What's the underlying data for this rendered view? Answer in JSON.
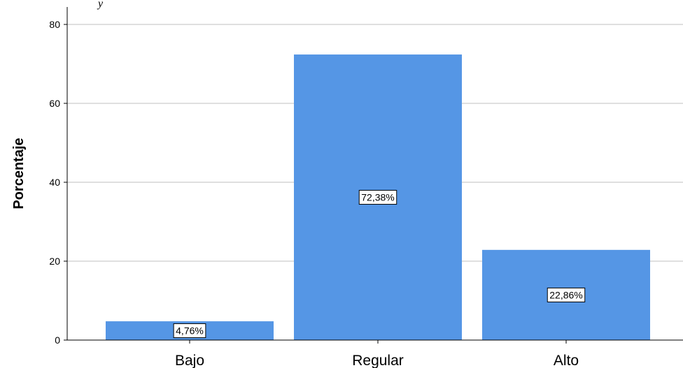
{
  "chart_data": {
    "type": "bar",
    "categories": [
      "Bajo",
      "Regular",
      "Alto"
    ],
    "values": [
      4.76,
      72.38,
      22.86
    ],
    "data_labels": [
      "4,76%",
      "72,38%",
      "22,86%"
    ],
    "ylabel": "Porcentaje",
    "xlabel": "",
    "ylim": [
      0,
      80
    ],
    "yticks": [
      0,
      20,
      40,
      60,
      80
    ],
    "ytick_labels": [
      "0",
      "20",
      "40",
      "60",
      "80"
    ],
    "grid": true,
    "bar_color": "#5596e5",
    "gridline_color": "#cccccc"
  },
  "corner_fragment": "y"
}
